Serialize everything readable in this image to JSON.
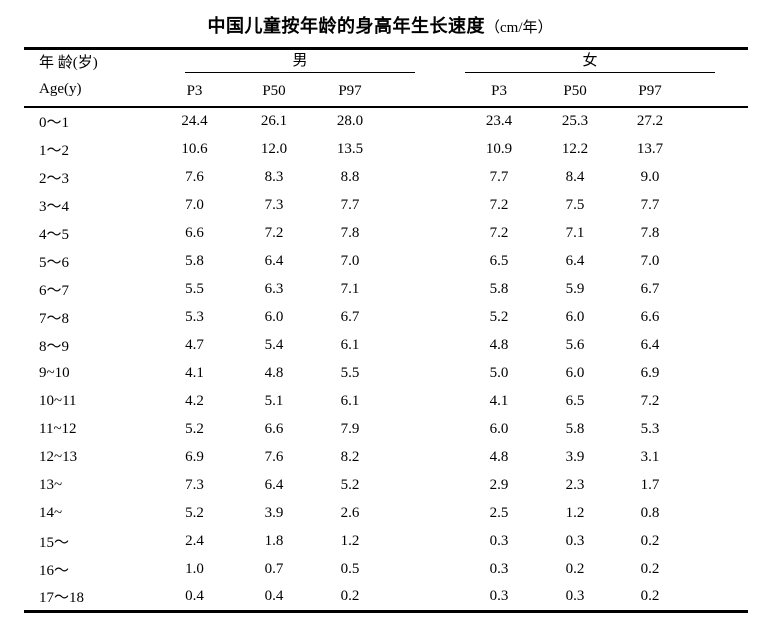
{
  "title": {
    "main": "中国儿童按年龄的身高年生长速度",
    "unit": "（cm/年）"
  },
  "table": {
    "header": {
      "age_cn": "年 龄(岁)",
      "age_en": "Age(y)",
      "male": "男",
      "female": "女",
      "percentiles": [
        "P3",
        "P50",
        "P97"
      ]
    },
    "rows": [
      {
        "age": "0～1",
        "male": [
          "24.4",
          "26.1",
          "28.0"
        ],
        "female": [
          "23.4",
          "25.3",
          "27.2"
        ]
      },
      {
        "age": "1～2",
        "male": [
          "10.6",
          "12.0",
          "13.5"
        ],
        "female": [
          "10.9",
          "12.2",
          "13.7"
        ]
      },
      {
        "age": "2～3",
        "male": [
          "7.6",
          "8.3",
          "8.8"
        ],
        "female": [
          "7.7",
          "8.4",
          "9.0"
        ]
      },
      {
        "age": "3～4",
        "male": [
          "7.0",
          "7.3",
          "7.7"
        ],
        "female": [
          "7.2",
          "7.5",
          "7.7"
        ]
      },
      {
        "age": "4～5",
        "male": [
          "6.6",
          "7.2",
          "7.8"
        ],
        "female": [
          "7.2",
          "7.1",
          "7.8"
        ]
      },
      {
        "age": "5～6",
        "male": [
          "5.8",
          "6.4",
          "7.0"
        ],
        "female": [
          "6.5",
          "6.4",
          "7.0"
        ]
      },
      {
        "age": "6～7",
        "male": [
          "5.5",
          "6.3",
          "7.1"
        ],
        "female": [
          "5.8",
          "5.9",
          "6.7"
        ]
      },
      {
        "age": "7～8",
        "male": [
          "5.3",
          "6.0",
          "6.7"
        ],
        "female": [
          "5.2",
          "6.0",
          "6.6"
        ]
      },
      {
        "age": "8～9",
        "male": [
          "4.7",
          "5.4",
          "6.1"
        ],
        "female": [
          "4.8",
          "5.6",
          "6.4"
        ]
      },
      {
        "age": "9~10",
        "male": [
          "4.1",
          "4.8",
          "5.5"
        ],
        "female": [
          "5.0",
          "6.0",
          "6.9"
        ]
      },
      {
        "age": "10~11",
        "male": [
          "4.2",
          "5.1",
          "6.1"
        ],
        "female": [
          "4.1",
          "6.5",
          "7.2"
        ]
      },
      {
        "age": "11~12",
        "male": [
          "5.2",
          "6.6",
          "7.9"
        ],
        "female": [
          "6.0",
          "5.8",
          "5.3"
        ]
      },
      {
        "age": "12~13",
        "male": [
          "6.9",
          "7.6",
          "8.2"
        ],
        "female": [
          "4.8",
          "3.9",
          "3.1"
        ]
      },
      {
        "age": "13~",
        "male": [
          "7.3",
          "6.4",
          "5.2"
        ],
        "female": [
          "2.9",
          "2.3",
          "1.7"
        ]
      },
      {
        "age": "14~",
        "male": [
          "5.2",
          "3.9",
          "2.6"
        ],
        "female": [
          "2.5",
          "1.2",
          "0.8"
        ]
      },
      {
        "age": "15～",
        "male": [
          "2.4",
          "1.8",
          "1.2"
        ],
        "female": [
          "0.3",
          "0.3",
          "0.2"
        ]
      },
      {
        "age": "16～",
        "male": [
          "1.0",
          "0.7",
          "0.5"
        ],
        "female": [
          "0.3",
          "0.2",
          "0.2"
        ]
      },
      {
        "age": "17～18",
        "male": [
          "0.4",
          "0.4",
          "0.2"
        ],
        "female": [
          "0.3",
          "0.3",
          "0.2"
        ]
      }
    ]
  },
  "colors": {
    "text": "#000000",
    "background": "#ffffff",
    "rule": "#000000"
  }
}
